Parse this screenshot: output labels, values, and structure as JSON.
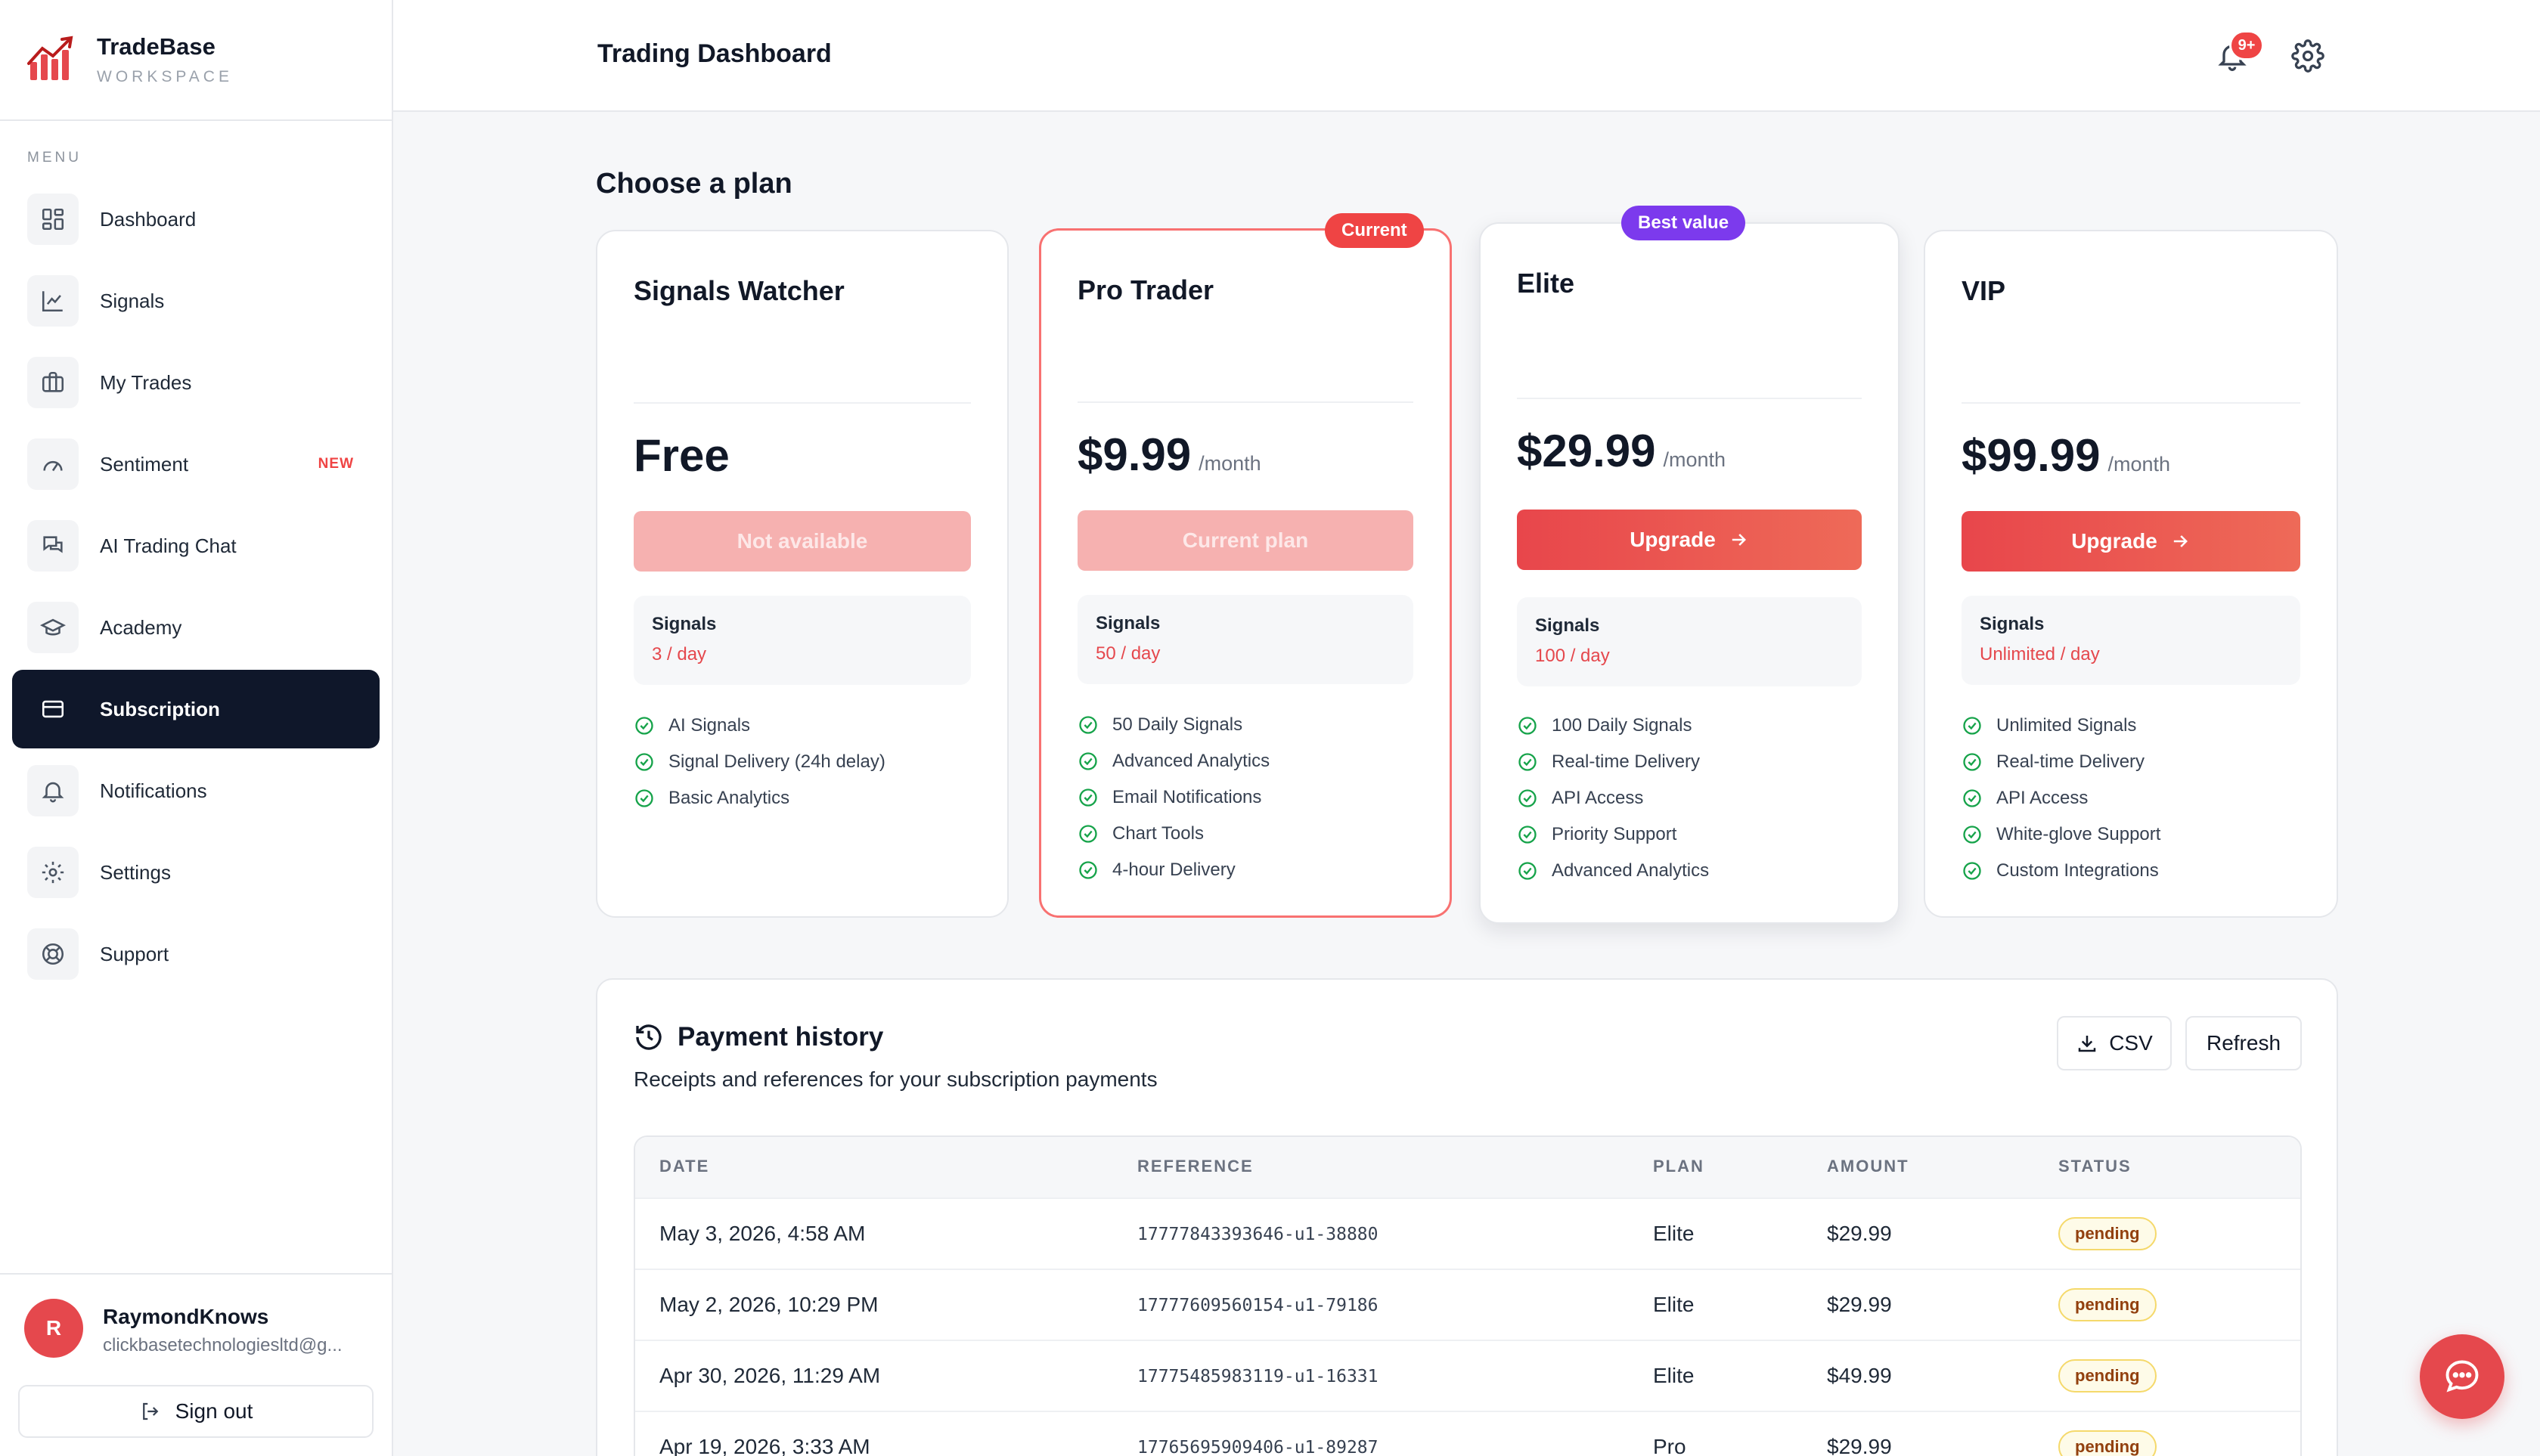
{
  "brand": {
    "name": "TradeBase",
    "sub": "WORKSPACE"
  },
  "sidebar": {
    "menu_label": "MENU",
    "items": [
      {
        "label": "Dashboard",
        "icon": "grid-icon"
      },
      {
        "label": "Signals",
        "icon": "chart-line-icon"
      },
      {
        "label": "My Trades",
        "icon": "briefcase-icon"
      },
      {
        "label": "Sentiment",
        "icon": "gauge-icon",
        "badge": "NEW"
      },
      {
        "label": "AI Trading Chat",
        "icon": "chat-bubbles-icon"
      },
      {
        "label": "Academy",
        "icon": "graduation-cap-icon"
      },
      {
        "label": "Subscription",
        "icon": "credit-card-icon",
        "active": true
      },
      {
        "label": "Notifications",
        "icon": "bell-icon"
      },
      {
        "label": "Settings",
        "icon": "gear-icon"
      },
      {
        "label": "Support",
        "icon": "lifebuoy-icon"
      }
    ]
  },
  "user": {
    "initial": "R",
    "name": "RaymondKnows",
    "email": "clickbasetechnologiesltd@g...",
    "sign_out": "Sign out"
  },
  "header": {
    "title": "Trading Dashboard",
    "notification_badge": "9+"
  },
  "plans_section": {
    "title": "Choose a plan"
  },
  "plans": [
    {
      "name": "Signals Watcher",
      "price": "Free",
      "period": "",
      "button": "Not available",
      "signals_label": "Signals",
      "signals_value": "3 / day",
      "features": [
        "AI Signals",
        "Signal Delivery (24h delay)",
        "Basic Analytics"
      ]
    },
    {
      "name": "Pro Trader",
      "tag": "Current",
      "price": "$9.99",
      "period": "/month",
      "button": "Current plan",
      "signals_label": "Signals",
      "signals_value": "50 / day",
      "features": [
        "50 Daily Signals",
        "Advanced Analytics",
        "Email Notifications",
        "Chart Tools",
        "4-hour Delivery"
      ]
    },
    {
      "name": "Elite",
      "tag": "Best value",
      "price": "$29.99",
      "period": "/month",
      "button": "Upgrade",
      "signals_label": "Signals",
      "signals_value": "100 / day",
      "features": [
        "100 Daily Signals",
        "Real-time Delivery",
        "API Access",
        "Priority Support",
        "Advanced Analytics"
      ]
    },
    {
      "name": "VIP",
      "price": "$99.99",
      "period": "/month",
      "button": "Upgrade",
      "signals_label": "Signals",
      "signals_value": "Unlimited / day",
      "features": [
        "Unlimited Signals",
        "Real-time Delivery",
        "API Access",
        "White-glove Support",
        "Custom Integrations"
      ]
    }
  ],
  "history": {
    "title": "Payment history",
    "subtitle": "Receipts and references for your subscription payments",
    "csv_label": "CSV",
    "refresh_label": "Refresh",
    "columns": [
      "DATE",
      "REFERENCE",
      "PLAN",
      "AMOUNT",
      "STATUS"
    ],
    "rows": [
      {
        "date": "May 3, 2026, 4:58 AM",
        "reference": "17777843393646-u1-38880",
        "plan": "Elite",
        "amount": "$29.99",
        "status": "pending"
      },
      {
        "date": "May 2, 2026, 10:29 PM",
        "reference": "17777609560154-u1-79186",
        "plan": "Elite",
        "amount": "$29.99",
        "status": "pending"
      },
      {
        "date": "Apr 30, 2026, 11:29 AM",
        "reference": "17775485983119-u1-16331",
        "plan": "Elite",
        "amount": "$49.99",
        "status": "pending"
      },
      {
        "date": "Apr 19, 2026, 3:33 AM",
        "reference": "17765695909406-u1-89287",
        "plan": "Pro",
        "amount": "$29.99",
        "status": "pending"
      }
    ]
  },
  "colors": {
    "accent": "#e5484d",
    "active_nav": "#0f172a",
    "best_value": "#7c3aed",
    "check": "#16a34a"
  }
}
